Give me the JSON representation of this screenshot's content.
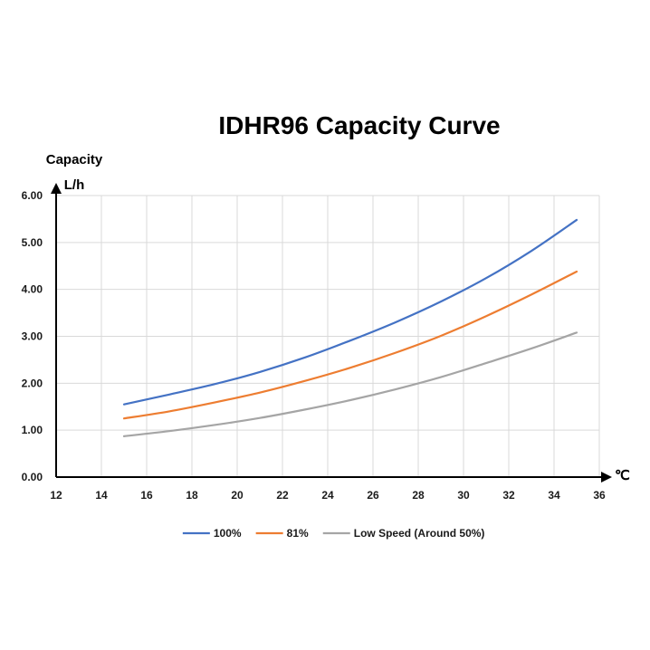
{
  "chart_data": {
    "type": "line",
    "title": "IDHR96  Capacity Curve",
    "ylabel": "Capacity",
    "yunit": "L/h",
    "xlabel": "℃",
    "xlim": [
      12,
      36
    ],
    "ylim": [
      0,
      6
    ],
    "xticks": [
      12,
      14,
      16,
      18,
      20,
      22,
      24,
      26,
      28,
      30,
      32,
      34,
      36
    ],
    "yticks": [
      0,
      1,
      2,
      3,
      4,
      5,
      6
    ],
    "xtick_labels": [
      "12",
      "14",
      "16",
      "18",
      "20",
      "22",
      "24",
      "26",
      "28",
      "30",
      "32",
      "34",
      "36"
    ],
    "ytick_labels": [
      "0.00",
      "1.00",
      "2.00",
      "3.00",
      "4.00",
      "5.00",
      "6.00"
    ],
    "grid": true,
    "legend_position": "bottom",
    "x": [
      15,
      17,
      19,
      21,
      23,
      25,
      27,
      29,
      31,
      33,
      35
    ],
    "series": [
      {
        "name": "100%",
        "color": "#4472c4",
        "values": [
          1.55,
          1.76,
          1.98,
          2.24,
          2.55,
          2.91,
          3.3,
          3.74,
          4.24,
          4.82,
          5.48
        ]
      },
      {
        "name": "81%",
        "color": "#ed7d31",
        "values": [
          1.25,
          1.4,
          1.59,
          1.8,
          2.05,
          2.33,
          2.65,
          3.01,
          3.43,
          3.89,
          4.38
        ]
      },
      {
        "name": "Low Speed (Around 50%)",
        "color": "#a5a5a5",
        "values": [
          0.87,
          0.98,
          1.11,
          1.26,
          1.44,
          1.64,
          1.87,
          2.13,
          2.43,
          2.74,
          3.08
        ]
      }
    ]
  }
}
